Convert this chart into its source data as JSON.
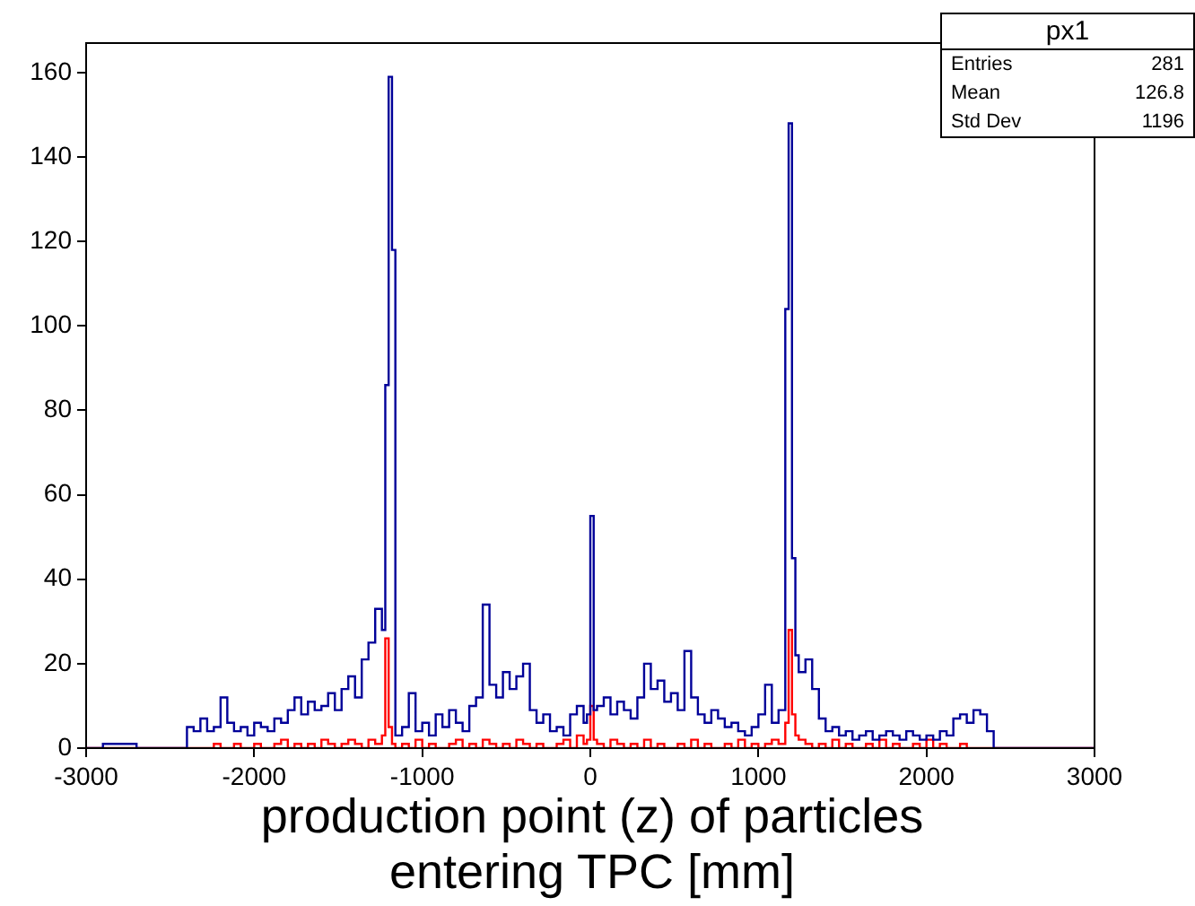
{
  "chart_data": {
    "type": "histogram",
    "xlabel": "production point (z) of particles entering TPC [mm]",
    "annotations": [
      "px1",
      "Entries",
      "281",
      "Mean",
      "126.8",
      "Std Dev",
      "1196"
    ],
    "bins": [
      -3000,
      -2900,
      -2800,
      -2700,
      -2600,
      -2500,
      -2400,
      -2360,
      -2320,
      -2280,
      -2240,
      -2200,
      -2160,
      -2120,
      -2080,
      -2040,
      -2000,
      -1960,
      -1920,
      -1880,
      -1840,
      -1800,
      -1760,
      -1720,
      -1680,
      -1640,
      -1600,
      -1560,
      -1520,
      -1480,
      -1440,
      -1400,
      -1360,
      -1320,
      -1280,
      -1240,
      -1220,
      -1200,
      -1180,
      -1160,
      -1120,
      -1080,
      -1040,
      -1000,
      -960,
      -920,
      -880,
      -840,
      -800,
      -760,
      -720,
      -680,
      -640,
      -600,
      -560,
      -520,
      -480,
      -440,
      -400,
      -360,
      -320,
      -280,
      -240,
      -200,
      -160,
      -120,
      -80,
      -40,
      -20,
      0,
      20,
      40,
      80,
      120,
      160,
      200,
      240,
      280,
      320,
      360,
      400,
      440,
      480,
      520,
      560,
      600,
      640,
      680,
      720,
      760,
      800,
      840,
      880,
      920,
      960,
      1000,
      1040,
      1080,
      1120,
      1160,
      1180,
      1200,
      1220,
      1240,
      1280,
      1320,
      1360,
      1400,
      1440,
      1480,
      1520,
      1560,
      1600,
      1640,
      1680,
      1720,
      1760,
      1800,
      1840,
      1880,
      1920,
      1960,
      2000,
      2040,
      2080,
      2120,
      2160,
      2200,
      2240,
      2280,
      2320,
      2360,
      2400,
      2440,
      2500,
      2600,
      2700,
      2800,
      2900,
      3000
    ],
    "series": [
      {
        "color": "#000099",
        "values": [
          0,
          1,
          1,
          0,
          0,
          0,
          5,
          4,
          7,
          4,
          5,
          12,
          6,
          4,
          5,
          3,
          6,
          5,
          4,
          7,
          6,
          9,
          12,
          8,
          11,
          9,
          10,
          13,
          9,
          14,
          17,
          12,
          21,
          25,
          33,
          28,
          86,
          159,
          118,
          3,
          5,
          13,
          4,
          6,
          3,
          8,
          5,
          9,
          6,
          4,
          10,
          12,
          34,
          15,
          12,
          18,
          14,
          17,
          20,
          9,
          6,
          8,
          4,
          5,
          3,
          8,
          10,
          6,
          8,
          55,
          9,
          10,
          12,
          8,
          11,
          9,
          7,
          12,
          20,
          14,
          16,
          11,
          13,
          9,
          23,
          12,
          8,
          6,
          9,
          7,
          5,
          6,
          4,
          3,
          5,
          8,
          15,
          6,
          9,
          104,
          148,
          45,
          22,
          18,
          21,
          14,
          7,
          4,
          5,
          3,
          4,
          2,
          3,
          4,
          2,
          3,
          4,
          3,
          2,
          4,
          3,
          2,
          3,
          2,
          4,
          3,
          7,
          8,
          6,
          9,
          8,
          4,
          0,
          0,
          0,
          0,
          0,
          0,
          0
        ]
      },
      {
        "color": "#ff0000",
        "values": [
          0,
          0,
          0,
          0,
          0,
          0,
          0,
          0,
          0,
          0,
          1,
          0,
          0,
          1,
          0,
          0,
          1,
          0,
          0,
          1,
          2,
          0,
          1,
          0,
          1,
          0,
          2,
          1,
          0,
          1,
          2,
          1,
          0,
          2,
          1,
          3,
          26,
          5,
          1,
          0,
          1,
          0,
          2,
          0,
          1,
          0,
          0,
          1,
          2,
          0,
          1,
          0,
          2,
          1,
          0,
          1,
          0,
          2,
          1,
          0,
          1,
          0,
          0,
          1,
          2,
          0,
          3,
          1,
          2,
          10,
          2,
          1,
          0,
          2,
          1,
          0,
          1,
          0,
          2,
          0,
          1,
          0,
          0,
          1,
          0,
          2,
          0,
          1,
          0,
          0,
          1,
          0,
          2,
          0,
          1,
          0,
          1,
          2,
          1,
          6,
          28,
          8,
          3,
          2,
          1,
          0,
          1,
          0,
          2,
          0,
          1,
          0,
          0,
          1,
          0,
          2,
          0,
          1,
          0,
          0,
          1,
          0,
          2,
          0,
          1,
          0,
          0,
          1,
          0,
          0,
          0,
          0,
          0,
          0,
          0,
          0,
          0,
          0,
          0
        ]
      }
    ],
    "xlim": [
      -3000,
      3000
    ],
    "xticks": [
      -3000,
      -2000,
      -1000,
      0,
      1000,
      2000,
      3000
    ],
    "ylim": [
      0,
      167
    ],
    "yticks": [
      0,
      20,
      40,
      60,
      80,
      100,
      120,
      140,
      160
    ],
    "grid": false,
    "legend": false
  }
}
